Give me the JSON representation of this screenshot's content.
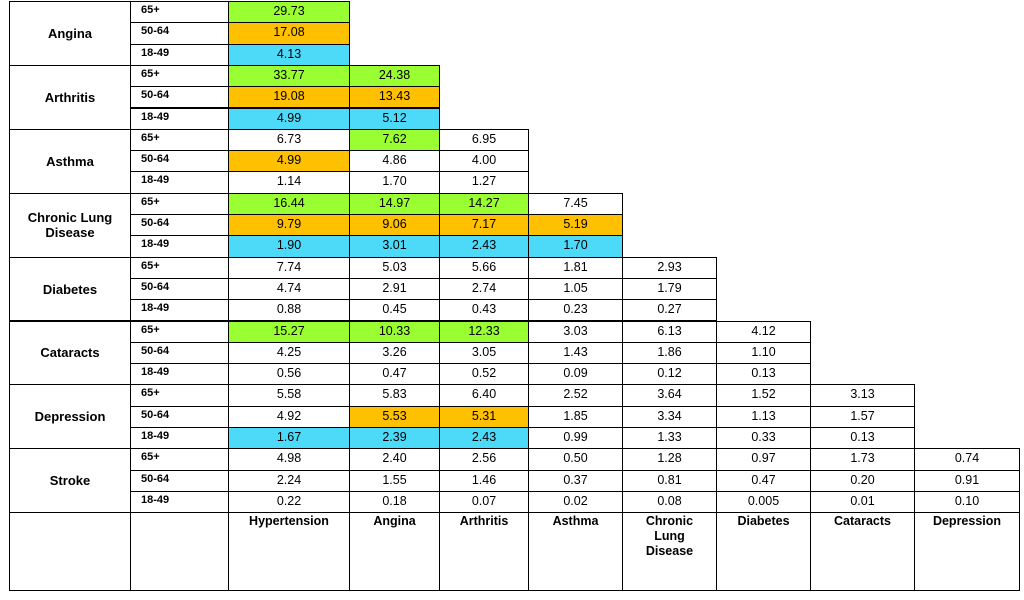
{
  "colors": {
    "green": "#99FF33",
    "orange": "#FFC000",
    "cyan": "#4DD9F8"
  },
  "age_groups": [
    "65+",
    "50-64",
    "18-49"
  ],
  "columns": [
    "Hypertension",
    "Angina",
    "Arthritis",
    "Asthma",
    "Chronic Lung Disease",
    "Diabetes",
    "Cataracts",
    "Depression"
  ],
  "column_lines": {
    "Chronic Lung Disease": [
      "Chronic",
      "Lung",
      "Disease"
    ]
  },
  "rows": [
    {
      "name": "Angina",
      "name_lines": [
        "Angina"
      ],
      "values": [
        [
          "29.73"
        ],
        [
          "17.08"
        ],
        [
          "4.13"
        ]
      ],
      "colors": [
        [
          "green"
        ],
        [
          "orange"
        ],
        [
          "cyan"
        ]
      ]
    },
    {
      "name": "Arthritis",
      "name_lines": [
        "Arthritis"
      ],
      "values": [
        [
          "33.77",
          "24.38"
        ],
        [
          "19.08",
          "13.43"
        ],
        [
          "4.99",
          "5.12"
        ]
      ],
      "colors": [
        [
          "green",
          "green"
        ],
        [
          "orange",
          "orange"
        ],
        [
          "cyan",
          "cyan"
        ]
      ]
    },
    {
      "name": "Asthma",
      "name_lines": [
        "Asthma"
      ],
      "values": [
        [
          "6.73",
          "7.62",
          "6.95"
        ],
        [
          "4.99",
          "4.86",
          "4.00"
        ],
        [
          "1.14",
          "1.70",
          "1.27"
        ]
      ],
      "colors": [
        [
          "",
          "green",
          ""
        ],
        [
          "orange",
          "",
          ""
        ],
        [
          "",
          "",
          ""
        ]
      ]
    },
    {
      "name": "Chronic Lung Disease",
      "name_lines": [
        "Chronic Lung",
        "Disease"
      ],
      "values": [
        [
          "16.44",
          "14.97",
          "14.27",
          "7.45"
        ],
        [
          "9.79",
          "9.06",
          "7.17",
          "5.19"
        ],
        [
          "1.90",
          "3.01",
          "2.43",
          "1.70"
        ]
      ],
      "colors": [
        [
          "green",
          "green",
          "green",
          ""
        ],
        [
          "orange",
          "orange",
          "orange",
          "orange"
        ],
        [
          "cyan",
          "cyan",
          "cyan",
          "cyan"
        ]
      ]
    },
    {
      "name": "Diabetes",
      "name_lines": [
        "Diabetes"
      ],
      "values": [
        [
          "7.74",
          "5.03",
          "5.66",
          "1.81",
          "2.93"
        ],
        [
          "4.74",
          "2.91",
          "2.74",
          "1.05",
          "1.79"
        ],
        [
          "0.88",
          "0.45",
          "0.43",
          "0.23",
          "0.27"
        ]
      ],
      "colors": [
        [
          "",
          "",
          "",
          "",
          ""
        ],
        [
          "",
          "",
          "",
          "",
          ""
        ],
        [
          "",
          "",
          "",
          "",
          ""
        ]
      ]
    },
    {
      "name": "Cataracts",
      "name_lines": [
        "Cataracts"
      ],
      "values": [
        [
          "15.27",
          "10.33",
          "12.33",
          "3.03",
          "6.13",
          "4.12"
        ],
        [
          "4.25",
          "3.26",
          "3.05",
          "1.43",
          "1.86",
          "1.10"
        ],
        [
          "0.56",
          "0.47",
          "0.52",
          "0.09",
          "0.12",
          "0.13"
        ]
      ],
      "colors": [
        [
          "green",
          "green",
          "green",
          "",
          "",
          ""
        ],
        [
          "",
          "",
          "",
          "",
          "",
          ""
        ],
        [
          "",
          "",
          "",
          "",
          "",
          ""
        ]
      ]
    },
    {
      "name": "Depression",
      "name_lines": [
        "Depression"
      ],
      "values": [
        [
          "5.58",
          "5.83",
          "6.40",
          "2.52",
          "3.64",
          "1.52",
          "3.13"
        ],
        [
          "4.92",
          "5.53",
          "5.31",
          "1.85",
          "3.34",
          "1.13",
          "1.57"
        ],
        [
          "1.67",
          "2.39",
          "2.43",
          "0.99",
          "1.33",
          "0.33",
          "0.13"
        ]
      ],
      "colors": [
        [
          "",
          "",
          "",
          "",
          "",
          "",
          ""
        ],
        [
          "",
          "orange",
          "orange",
          "",
          "",
          "",
          ""
        ],
        [
          "cyan",
          "cyan",
          "cyan",
          "",
          "",
          "",
          ""
        ]
      ]
    },
    {
      "name": "Stroke",
      "name_lines": [
        "Stroke"
      ],
      "values": [
        [
          "4.98",
          "2.40",
          "2.56",
          "0.50",
          "1.28",
          "0.97",
          "1.73",
          "0.74"
        ],
        [
          "2.24",
          "1.55",
          "1.46",
          "0.37",
          "0.81",
          "0.47",
          "0.20",
          "0.91"
        ],
        [
          "0.22",
          "0.18",
          "0.07",
          "0.02",
          "0.08",
          "0.005",
          "0.01",
          "0.10"
        ]
      ],
      "colors": [
        [
          "",
          "",
          "",
          "",
          "",
          "",
          "",
          ""
        ],
        [
          "",
          "",
          "",
          "",
          "",
          "",
          "",
          ""
        ],
        [
          "",
          "",
          "",
          "",
          "",
          "",
          "",
          ""
        ]
      ]
    }
  ]
}
